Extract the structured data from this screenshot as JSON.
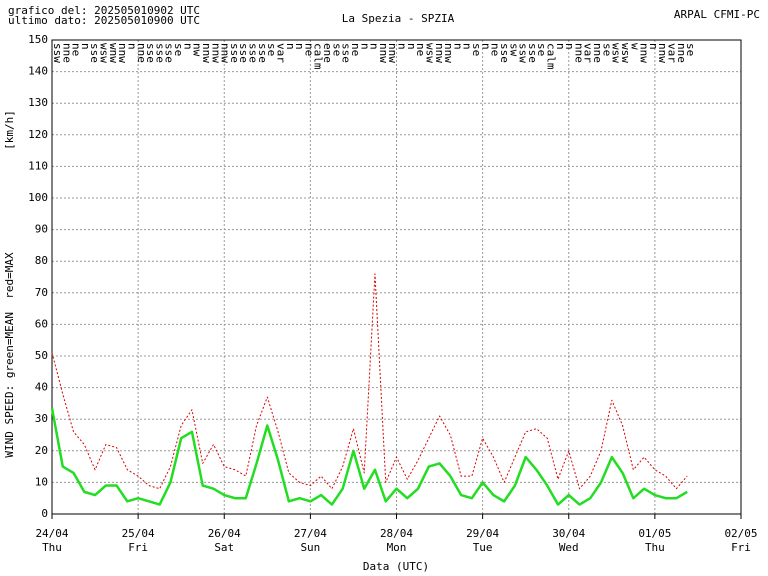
{
  "chart_data": {
    "type": "line",
    "title": "La Spezia - SPZIA",
    "info_lines": [
      "grafico del: 202505010902 UTC",
      "ultimo dato: 202505010900 UTC"
    ],
    "source": "ARPAL CFMI-PC",
    "ylabel": "[km/h]",
    "ylabel_note": "WIND SPEED: green=MEAN  red=MAX",
    "xlabel": "Data (UTC)",
    "xlim": [
      0,
      192
    ],
    "ylim": [
      0,
      150
    ],
    "yticks": [
      0,
      10,
      20,
      30,
      40,
      50,
      60,
      70,
      80,
      90,
      100,
      110,
      120,
      130,
      140,
      150
    ],
    "xticks": [
      {
        "value": 0,
        "label": "24/04"
      },
      {
        "value": 24,
        "label": "25/04"
      },
      {
        "value": 48,
        "label": "26/04"
      },
      {
        "value": 72,
        "label": "27/04"
      },
      {
        "value": 96,
        "label": "28/04"
      },
      {
        "value": 120,
        "label": "29/04"
      },
      {
        "value": 144,
        "label": "30/04"
      },
      {
        "value": 168,
        "label": "01/05"
      },
      {
        "value": 192,
        "label": "02/05"
      }
    ],
    "xtick_weekdays": [
      "Thu",
      "Fri",
      "Sat",
      "Sun",
      "Mon",
      "Tue",
      "Wed",
      "Thu",
      "Fri"
    ],
    "grid": true,
    "directions": [
      "ssw",
      "nne",
      "ne",
      "n",
      "sse",
      "wsw",
      "wnw",
      "nnw",
      "n",
      "nne",
      "sse",
      "sse",
      "sse",
      "se",
      "n",
      "nw",
      "nnw",
      "nnw",
      "nnw",
      "sse",
      "sse",
      "sse",
      "sse",
      "se",
      "var",
      "n",
      "n",
      "ne",
      "calm",
      "ene",
      "se",
      "sse",
      "ne",
      "n",
      "n",
      "nnw",
      "nnw",
      "n",
      "n",
      "ne",
      "wsw",
      "nnw",
      "nnw",
      "n",
      "n",
      "se",
      "n",
      "ne",
      "sse",
      "sw",
      "ssw",
      "sse",
      "se",
      "calm",
      "n",
      "n",
      "nne",
      "var",
      "nne",
      "se",
      "wsw",
      "wsw",
      "w",
      "nnw",
      "n",
      "nnw",
      "var",
      "nne",
      "se"
    ],
    "x": [
      0,
      3,
      6,
      9,
      12,
      15,
      18,
      21,
      24,
      27,
      30,
      33,
      36,
      39,
      42,
      45,
      48,
      51,
      54,
      57,
      60,
      63,
      66,
      69,
      72,
      75,
      78,
      81,
      84,
      87,
      90,
      93,
      96,
      99,
      102,
      105,
      108,
      111,
      114,
      117,
      120,
      123,
      126,
      129,
      132,
      135,
      138,
      141,
      144,
      147,
      150,
      153,
      156,
      159,
      162,
      165,
      168,
      171,
      174,
      177
    ],
    "series": [
      {
        "color": "#dd0000",
        "style": "dotted",
        "values": [
          51,
          38,
          26,
          22,
          14,
          22,
          21,
          14,
          12,
          9,
          8,
          15,
          28,
          33,
          16,
          22,
          15,
          14,
          12,
          28,
          37,
          26,
          13,
          10,
          9,
          12,
          8,
          15,
          27,
          13,
          76,
          10,
          18,
          11,
          17,
          24,
          31,
          25,
          12,
          12,
          24,
          18,
          10,
          18,
          26,
          27,
          24,
          11,
          20,
          8,
          12,
          20,
          36,
          28,
          14,
          18,
          14,
          12,
          8,
          12
        ]
      },
      {
        "color": "#22dd22",
        "style": "solid",
        "values": [
          33.5,
          15,
          13,
          7,
          6,
          9,
          9,
          4,
          5,
          4,
          3,
          10,
          24,
          26,
          9,
          8,
          6,
          5,
          5,
          16,
          28,
          17,
          4,
          5,
          4,
          6,
          3,
          8,
          20,
          8,
          14,
          4,
          8,
          5,
          8,
          15,
          16,
          12,
          6,
          5,
          10,
          6,
          4,
          9,
          18,
          14,
          9,
          3,
          6,
          3,
          5,
          10,
          18,
          13,
          5,
          8,
          6,
          5,
          5,
          7
        ]
      }
    ]
  }
}
